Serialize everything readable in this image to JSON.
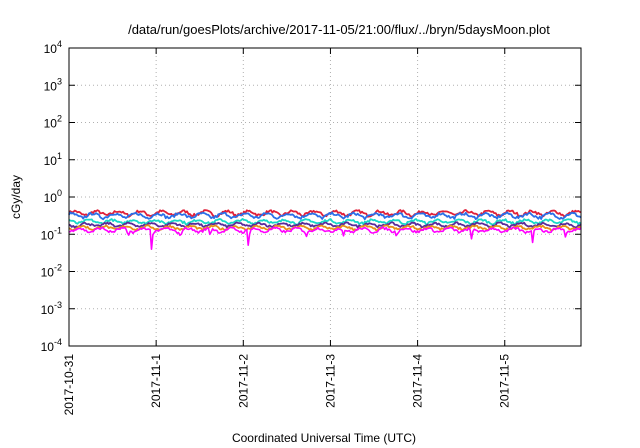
{
  "chart_data": {
    "type": "line",
    "title": "/data/run/goesPlots/archive/2017-11-05/21:00/flux/../bryn/5daysMoon.plot",
    "xlabel": "Coordinated Universal Time (UTC)",
    "ylabel": "cGy/day",
    "yscale": "log",
    "ylim": [
      0.0001,
      10000
    ],
    "y_ticks": [
      {
        "base": "10",
        "exp": "-4",
        "value": 0.0001
      },
      {
        "base": "10",
        "exp": "-3",
        "value": 0.001
      },
      {
        "base": "10",
        "exp": "-2",
        "value": 0.01
      },
      {
        "base": "10",
        "exp": "-1",
        "value": 0.1
      },
      {
        "base": "10",
        "exp": "0",
        "value": 1
      },
      {
        "base": "10",
        "exp": "1",
        "value": 10
      },
      {
        "base": "10",
        "exp": "2",
        "value": 100
      },
      {
        "base": "10",
        "exp": "3",
        "value": 1000
      },
      {
        "base": "10",
        "exp": "4",
        "value": 10000
      }
    ],
    "xlim": [
      "2017-10-31 00:00",
      "2017-11-05 21:00"
    ],
    "x_ticks": [
      "2017-10-31",
      "2017-11-1",
      "2017-11-2",
      "2017-11-3",
      "2017-11-4",
      "2017-11-5"
    ],
    "grid": true,
    "legend": "none",
    "series": [
      {
        "color": "#e0203a",
        "base": 0.37,
        "amp": 0.08
      },
      {
        "color": "#2a6fe8",
        "base": 0.32,
        "amp": 0.07
      },
      {
        "color": "#18d8c8",
        "base": 0.22,
        "amp": 0.04
      },
      {
        "color": "#5a2a9a",
        "base": 0.18,
        "amp": 0.03
      },
      {
        "color": "#e89018",
        "base": 0.15,
        "amp": 0.025
      },
      {
        "color": "#ff00ff",
        "base": 0.13,
        "amp": 0.025,
        "dips": [
          {
            "day": 0.68,
            "value": 0.08
          },
          {
            "day": 0.95,
            "value": 0.018
          },
          {
            "day": 1.28,
            "value": 0.07
          },
          {
            "day": 1.62,
            "value": 0.09
          },
          {
            "day": 2.06,
            "value": 0.03
          },
          {
            "day": 2.72,
            "value": 0.07
          },
          {
            "day": 3.15,
            "value": 0.09
          },
          {
            "day": 3.76,
            "value": 0.07
          },
          {
            "day": 4.62,
            "value": 0.07
          },
          {
            "day": 5.32,
            "value": 0.06
          },
          {
            "day": 5.7,
            "value": 0.07
          }
        ]
      }
    ]
  }
}
